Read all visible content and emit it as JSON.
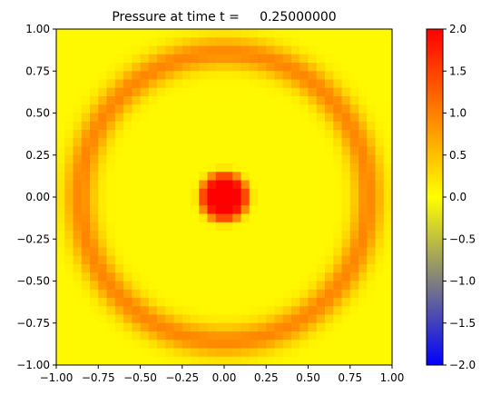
{
  "chart_data": {
    "type": "heatmap",
    "title": "Pressure at time t =     0.25000000",
    "xlabel": "",
    "ylabel": "",
    "xlim": [
      -1.0,
      1.0
    ],
    "ylim": [
      -1.0,
      1.0
    ],
    "x_ticks": [
      "−1.00",
      "−0.75",
      "−0.50",
      "−0.25",
      "0.00",
      "0.25",
      "0.50",
      "0.75",
      "1.00"
    ],
    "y_ticks": [
      "1.00",
      "0.75",
      "0.50",
      "0.25",
      "0.00",
      "−0.25",
      "−0.50",
      "−0.75",
      "−1.00"
    ],
    "grid": false,
    "grid_resolution": 40,
    "field": {
      "central_peak": {
        "center": [
          0.0,
          0.0
        ],
        "radius": 0.15,
        "value": 2.0
      },
      "ring": {
        "radius": 0.86,
        "width": 0.09,
        "value": 0.9
      },
      "background_value": 0.05
    },
    "colorbar": {
      "range": [
        -2.0,
        2.0
      ],
      "ticks": [
        "2.0",
        "1.5",
        "1.0",
        "0.5",
        "0.0",
        "−0.5",
        "−1.0",
        "−1.5",
        "−2.0"
      ],
      "colormap": [
        {
          "value": -2.0,
          "color": "#0000ff"
        },
        {
          "value": 0.0,
          "color": "#ffff00"
        },
        {
          "value": 2.0,
          "color": "#ff0000"
        }
      ]
    }
  }
}
